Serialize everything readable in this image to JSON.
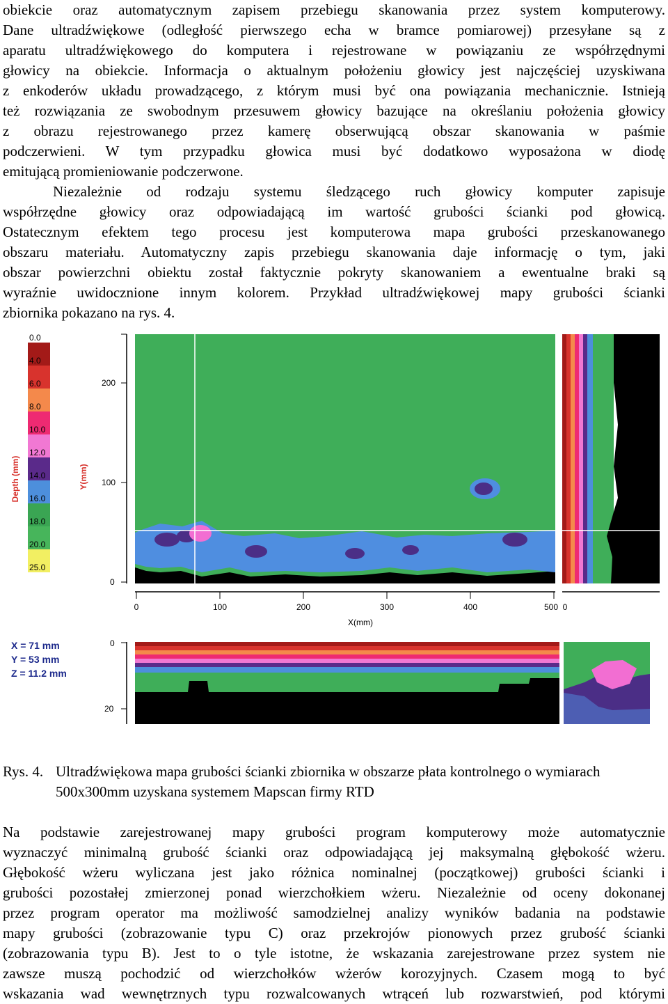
{
  "text": {
    "para1_lines": [
      "obiekcie oraz automatycznym zapisem przebiegu skanowania przez system komputerowy.",
      "Dane ultradźwiękowe (odległość pierwszego echa w bramce pomiarowej) przesyłane są z",
      "aparatu ultradźwiękowego do komputera i rejestrowane w powiązaniu ze współrzędnymi",
      "głowicy na obiekcie. Informacja o aktualnym położeniu głowicy jest najczęściej uzyskiwana",
      "z enkoderów układu prowadzącego, z którym musi być ona powiązania mechanicznie. Istnieją",
      "też rozwiązania ze swobodnym przesuwem głowicy bazujące na określaniu położenia głowicy",
      "z obrazu rejestrowanego przez kamerę obserwującą obszar skanowania w paśmie",
      "podczerwieni. W tym przypadku głowica musi być dodatkowo wyposażona w diodę",
      "emitującą promieniowanie podczerwone."
    ],
    "para2_lines": [
      "Niezależnie od rodzaju systemu śledzącego ruch głowicy komputer zapisuje",
      "współrzędne głowicy oraz odpowiadającą im wartość grubości ścianki pod głowicą.",
      "Ostatecznym efektem tego procesu jest komputerowa mapa grubości przeskanowanego",
      "obszaru materiału. Automatyczny zapis przebiegu skanowania daje informację o tym, jaki",
      "obszar powierzchni obiektu został faktycznie pokryty skanowaniem a ewentualne braki są",
      "wyraźnie uwidocznione innym kolorem. Przykład ultradźwiękowej mapy grubości ścianki",
      "zbiornika pokazano na rys. 4."
    ],
    "caption_label": "Rys. 4.",
    "caption_text": "Ultradźwiękowa mapa grubości ścianki zbiornika w obszarze płata kontrolnego o wymiarach 500x300mm uzyskana systemem Mapscan firmy RTD",
    "para3_lines": [
      "Na podstawie zarejestrowanej mapy grubości program komputerowy może automatycznie",
      "wyznaczyć minimalną grubość ścianki oraz odpowiadającą jej maksymalną głębokość wżeru.",
      "Głębokość wżeru wyliczana jest jako różnica nominalnej (początkowej) grubości ścianki i",
      "grubości pozostałej zmierzonej ponad wierzchołkiem wżeru. Niezależnie od oceny dokonanej",
      "przez program operator ma możliwość samodzielnej analizy wyników badania na podstawie",
      "mapy grubości (zobrazowanie typu C) oraz przekrojów pionowych przez grubość ścianki",
      "(zobrazowania typu B). Jest to o tyle istotne, że wskazania zarejestrowane przez system nie",
      "zawsze muszą pochodzić od wierzchołków wżerów korozyjnych. Czasem mogą to być",
      "wskazania wad wewnętrznych typu rozwalcowanych wtrąceń lub rozwarstwień, pod którymi"
    ]
  },
  "figure": {
    "legend": {
      "title": "Depth (mm)",
      "entries": [
        {
          "label": "0.0",
          "color": "#ffffff"
        },
        {
          "label": "4.0",
          "color": "#a31a18"
        },
        {
          "label": "6.0",
          "color": "#d8332d"
        },
        {
          "label": "8.0",
          "color": "#f4894b"
        },
        {
          "label": "10.0",
          "color": "#ee2a72"
        },
        {
          "label": "12.0",
          "color": "#f178d3"
        },
        {
          "label": "14.0",
          "color": "#5a2a8a"
        },
        {
          "label": "16.0",
          "color": "#4d8fdc"
        },
        {
          "label": "18.0",
          "color": "#3aa553"
        },
        {
          "label": "20.0",
          "color": "#47b55b"
        },
        {
          "label": "25.0",
          "color": "#f2ef62"
        }
      ]
    },
    "c_scan": {
      "y_axis_title": "Y(mm)",
      "y_ticks": [
        "200",
        "100",
        "0"
      ],
      "x_axis_title": "X(mm)",
      "x_ticks": [
        "0",
        "100",
        "200",
        "300",
        "400",
        "500"
      ],
      "side_tick": "0"
    },
    "b_scan": {
      "y_ticks": [
        "0",
        "20"
      ]
    },
    "readout": {
      "x": "X = 71 mm",
      "y": "Y = 53 mm",
      "z": "Z = 11.2 mm"
    },
    "colors": {
      "wall": "#3fae59",
      "shallow_loss": "#4f8ee0",
      "deep_loss": "#4b2e86",
      "pink_spot": "#f26ed2",
      "no_data": "#000000"
    }
  }
}
